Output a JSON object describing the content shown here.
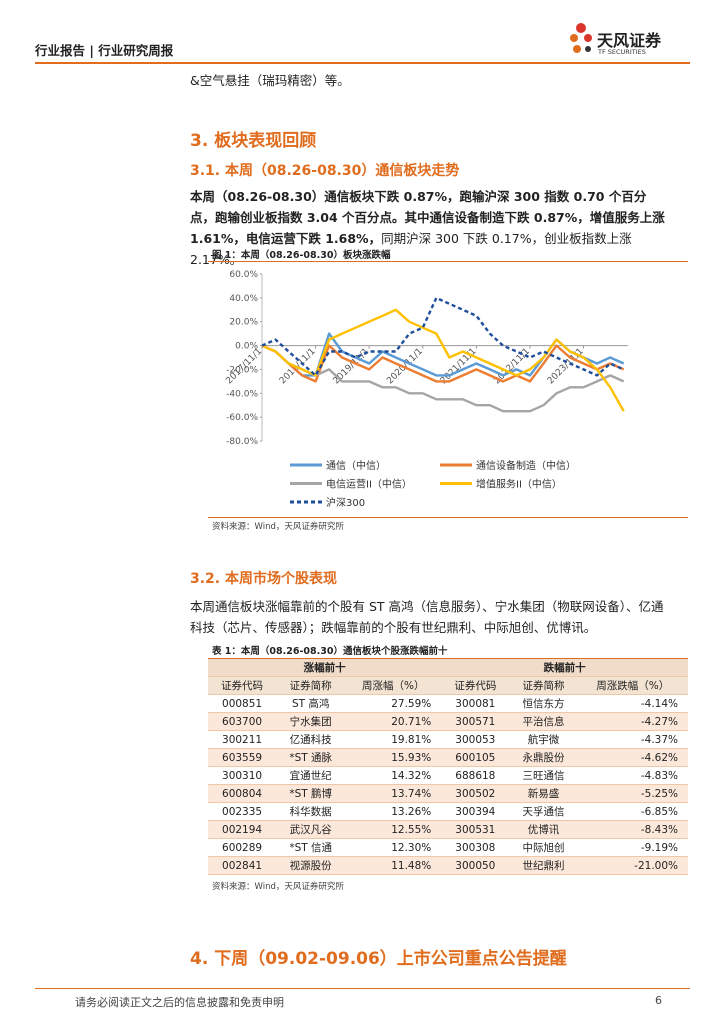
{
  "header": {
    "title": "行业报告 | 行业研究周报",
    "logo": "天风证券",
    "logo_en": "TF SECURITIES"
  },
  "intro": "&空气悬挂（瑞玛精密）等。",
  "section3": {
    "title": "3. 板块表现回顾",
    "sub1": {
      "title": "3.1. 本周（08.26-08.30）通信板块走势",
      "para_bold": "本周（08.26-08.30）通信板块下跌 0.87%，跑输沪深 300 指数 0.70 个百分点，跑输创业板指数 3.04 个百分点。其中通信设备制造下跌 0.87%，增值服务上涨 1.61%，电信运营下跌 1.68%，",
      "para_normal": "同期沪深 300 下跌 0.17%，创业板指数上涨 2.17%。",
      "caption": "图 1：本周（08.26-08.30）板块涨跌幅",
      "source": "资料来源：Wind，天风证券研究所"
    },
    "sub2": {
      "title": "3.2. 本周市场个股表现",
      "para": "本周通信板块涨幅靠前的个股有 ST 高鸿（信息服务）、宁水集团（物联网设备）、亿通科技（芯片、传感器）；跌幅靠前的个股有世纪鼎利、中际旭创、优博讯。",
      "caption": "表 1：本周（08.26-08.30）通信板块个股涨跌幅前十",
      "source": "资料来源：Wind，天风证券研究所"
    }
  },
  "chart_data": {
    "type": "line",
    "x": [
      "2017/11/1",
      "2018/2/1",
      "2018/5/1",
      "2018/8/1",
      "2018/11/1",
      "2019/2/1",
      "2019/5/1",
      "2019/8/1",
      "2019/11/1",
      "2020/2/1",
      "2020/5/1",
      "2020/8/1",
      "2020/11/1",
      "2021/2/1",
      "2021/5/1",
      "2021/8/1",
      "2021/11/1",
      "2022/2/1",
      "2022/5/1",
      "2022/8/1",
      "2022/11/1",
      "2023/2/1",
      "2023/5/1",
      "2023/8/1",
      "2023/11/1",
      "2024/2/1",
      "2024/5/1",
      "2024/8/1"
    ],
    "xlim": [
      "2017/11/1",
      "2024/8/30"
    ],
    "xticks": [
      "2017/11/1",
      "2018/11/1",
      "2019/11/1",
      "2020/11/1",
      "2021/11/1",
      "2022/11/1",
      "2023/11/1"
    ],
    "ylim": [
      -80,
      60
    ],
    "yticks": [
      {
        "value": 60,
        "label": "60.0%"
      },
      {
        "value": 40,
        "label": "40.0%"
      },
      {
        "value": 20,
        "label": "20.0%"
      },
      {
        "value": 0,
        "label": "0.0%"
      },
      {
        "value": -20,
        "label": "-20.0%"
      },
      {
        "value": -40,
        "label": "-40.0%"
      },
      {
        "value": -60,
        "label": "-60.0%"
      },
      {
        "value": -80,
        "label": "-80.0%"
      }
    ],
    "grid": false,
    "series": [
      {
        "name": "通信（中信）",
        "color": "#5b9bd5",
        "values": [
          0,
          -5,
          -15,
          -25,
          -25,
          10,
          -5,
          -10,
          -15,
          -5,
          -10,
          -15,
          -20,
          -25,
          -25,
          -20,
          -15,
          -20,
          -25,
          -20,
          -25,
          -10,
          5,
          -5,
          -10,
          -15,
          -10,
          -15
        ]
      },
      {
        "name": "通信设备制造（中信）",
        "color": "#ed7d31",
        "values": [
          0,
          -5,
          -15,
          -25,
          -30,
          0,
          -10,
          -15,
          -20,
          -10,
          -15,
          -20,
          -25,
          -30,
          -30,
          -25,
          -20,
          -25,
          -30,
          -25,
          -30,
          -15,
          0,
          -10,
          -15,
          -20,
          -15,
          -20
        ]
      },
      {
        "name": "电信运营II（中信）",
        "color": "#a5a5a5",
        "values": [
          0,
          -5,
          -15,
          -20,
          -25,
          -20,
          -30,
          -30,
          -30,
          -35,
          -35,
          -40,
          -40,
          -45,
          -45,
          -45,
          -50,
          -50,
          -55,
          -55,
          -55,
          -50,
          -40,
          -35,
          -35,
          -30,
          -25,
          -30
        ]
      },
      {
        "name": "增值服务II（中信）",
        "color": "#ffc000",
        "values": [
          0,
          -5,
          -15,
          -20,
          -25,
          5,
          10,
          15,
          20,
          25,
          30,
          20,
          15,
          10,
          -10,
          -5,
          -10,
          -15,
          -20,
          -25,
          -20,
          -10,
          5,
          -5,
          -10,
          -20,
          -35,
          -55
        ]
      },
      {
        "name": "沪深300",
        "color": "#1f4e9c",
        "dashed": true,
        "values": [
          0,
          5,
          -5,
          -15,
          -25,
          -5,
          -5,
          -10,
          -5,
          -5,
          -5,
          10,
          15,
          40,
          35,
          30,
          25,
          10,
          0,
          -5,
          -10,
          -5,
          -10,
          -15,
          -20,
          -25,
          -15,
          -20
        ]
      }
    ]
  },
  "table": {
    "group_headers": [
      "涨幅前十",
      "跌幅前十"
    ],
    "columns": [
      "证券代码",
      "证券简称",
      "周涨幅（%）",
      "证券代码",
      "证券简称",
      "周涨跌幅（%）"
    ],
    "rows": [
      [
        "000851",
        "ST 高鸿",
        "27.59%",
        "300081",
        "恒信东方",
        "-4.14%"
      ],
      [
        "603700",
        "宁水集团",
        "20.71%",
        "300571",
        "平治信息",
        "-4.27%"
      ],
      [
        "300211",
        "亿通科技",
        "19.81%",
        "300053",
        "航宇微",
        "-4.37%"
      ],
      [
        "603559",
        "*ST 通脉",
        "15.93%",
        "600105",
        "永鼎股份",
        "-4.62%"
      ],
      [
        "300310",
        "宜通世纪",
        "14.32%",
        "688618",
        "三旺通信",
        "-4.83%"
      ],
      [
        "600804",
        "*ST 鹏博",
        "13.74%",
        "300502",
        "新易盛",
        "-5.25%"
      ],
      [
        "002335",
        "科华数据",
        "13.26%",
        "300394",
        "天孚通信",
        "-6.85%"
      ],
      [
        "002194",
        "武汉凡谷",
        "12.55%",
        "300531",
        "优博讯",
        "-8.43%"
      ],
      [
        "600289",
        "*ST 信通",
        "12.30%",
        "300308",
        "中际旭创",
        "-9.19%"
      ],
      [
        "002841",
        "视源股份",
        "11.48%",
        "300050",
        "世纪鼎利",
        "-21.00%"
      ]
    ]
  },
  "section4": {
    "title": "4. 下周（09.02-09.06）上市公司重点公告提醒"
  },
  "footer": {
    "disclaimer": "请务必阅读正文之后的信息披露和免责申明",
    "page": "6"
  }
}
